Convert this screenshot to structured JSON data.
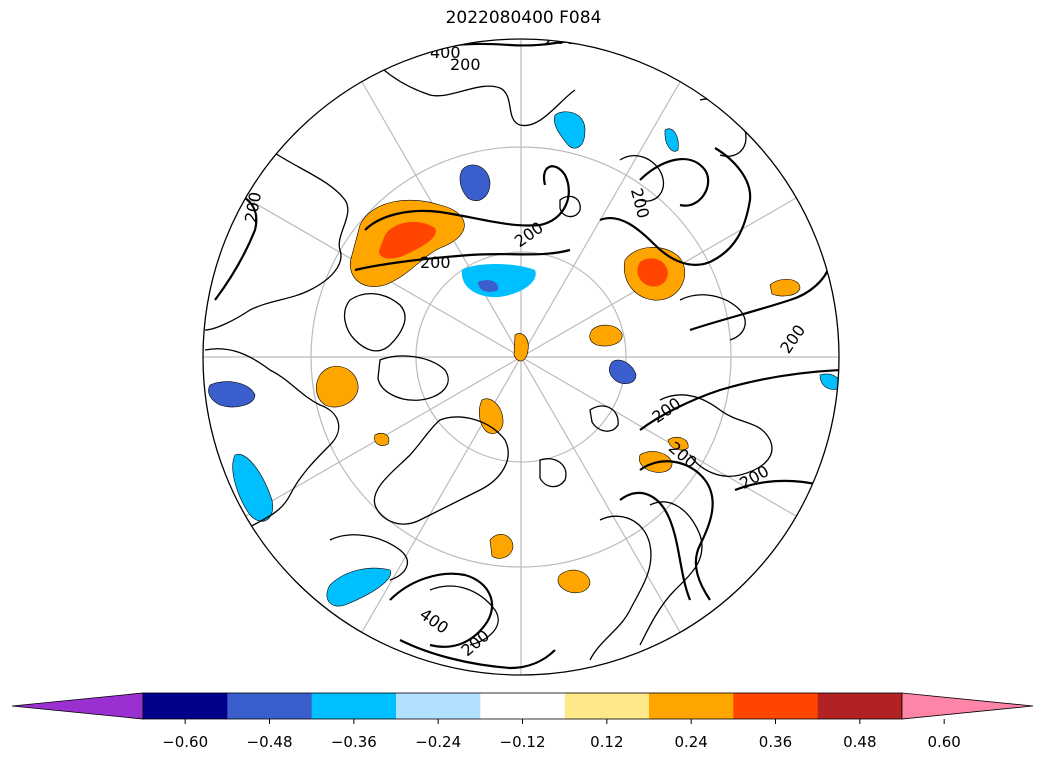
{
  "title": "2022080400 F084",
  "map": {
    "projection": "north-polar-stereographic",
    "land_outline_color": "#000000",
    "graticule_color": "#bbbbbb",
    "contour_labels": [
      "200",
      "200",
      "200",
      "200",
      "200",
      "200",
      "200",
      "200",
      "200",
      "200",
      "200",
      "400",
      "400"
    ]
  },
  "colorbar": {
    "ticks": [
      "−0.60",
      "−0.48",
      "−0.36",
      "−0.24",
      "−0.12",
      "0.12",
      "0.24",
      "0.36",
      "0.48",
      "0.60"
    ],
    "colors": [
      "#9b30d0",
      "#00008b",
      "#3a5fcd",
      "#00bfff",
      "#b3e0ff",
      "#ffffff",
      "#ffe88a",
      "#ffa500",
      "#ff4500",
      "#b22222",
      "#ff85a8"
    ],
    "extend": "both"
  }
}
